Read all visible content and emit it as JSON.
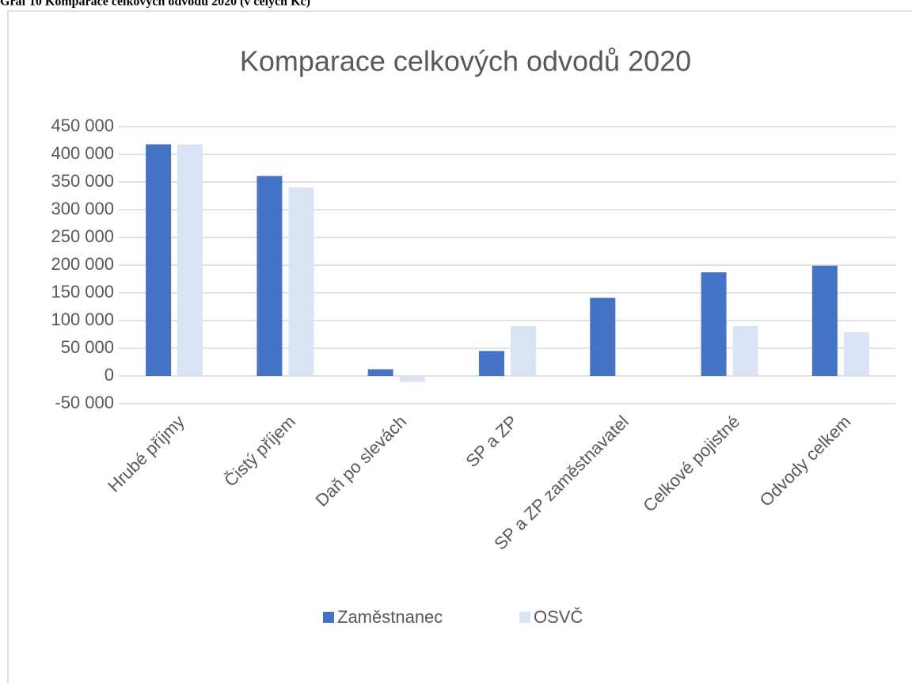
{
  "caption": "Graf 10 Komparace celkových odvodů 2020 (v celých Kč)",
  "chart_data": {
    "type": "bar",
    "title": "Komparace celkových odvodů 2020",
    "categories": [
      "Hrubé příjmy",
      "Čistý příjem",
      "Daň po slevách",
      "SP a ZP",
      "SP a ZP zaměstnavatel",
      "Celkové pojistné",
      "Odvody celkem"
    ],
    "series": [
      {
        "name": "Zaměstnanec",
        "color": "#4472c4",
        "values": [
          418000,
          361000,
          12000,
          45000,
          141000,
          187000,
          199000
        ]
      },
      {
        "name": "OSVČ",
        "color": "#dae3f3",
        "values": [
          418000,
          340000,
          -11000,
          90000,
          0,
          90000,
          79000
        ]
      }
    ],
    "ylim": [
      -50000,
      450000
    ],
    "yticks": [
      {
        "value": -50000,
        "label": "-50 000"
      },
      0,
      {
        "value": 50000,
        "label": "50 000"
      },
      {
        "value": 100000,
        "label": "100 000"
      },
      {
        "value": 150000,
        "label": "150 000"
      },
      {
        "value": 200000,
        "label": "200 000"
      },
      {
        "value": 250000,
        "label": "250 000"
      },
      {
        "value": 300000,
        "label": "300 000"
      },
      {
        "value": 350000,
        "label": "350 000"
      },
      {
        "value": 400000,
        "label": "400 000"
      },
      {
        "value": 450000,
        "label": "450 000"
      }
    ],
    "grid": true,
    "legend": "bottom"
  }
}
